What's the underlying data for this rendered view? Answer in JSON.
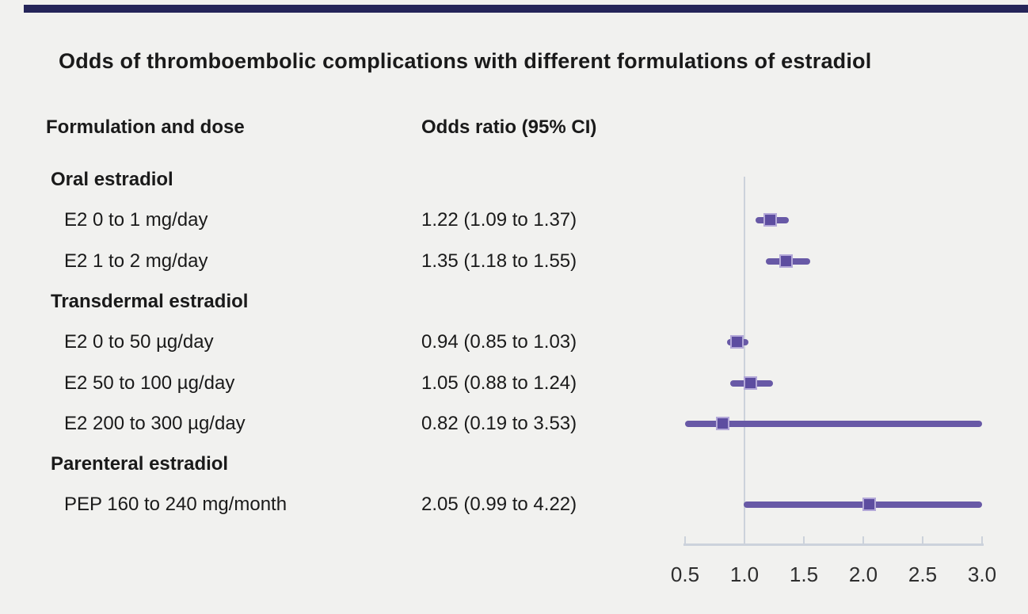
{
  "figure": {
    "title": "Odds of thromboembolic complications with different formulations of estradiol"
  },
  "colors": {
    "background": "#f1f1ef",
    "top_bar": "#252559",
    "text": "#1a1a1a",
    "ci_line_purple": "#6859a6",
    "marker_purple": "#5d4da0",
    "marker_edge": "#b3a8d8",
    "axis_gray_blue": "#ccd2db"
  },
  "chart_data": {
    "type": "forest",
    "title": "Odds of thromboembolic complications with different formulations of estradiol",
    "columns": [
      "Formulation and dose",
      "Odds ratio (95% CI)"
    ],
    "rows": [
      {
        "kind": "group",
        "label": "Oral estradiol"
      },
      {
        "kind": "item",
        "label": "E2 0 to 1 mg/day",
        "or_text": "1.22 (1.09 to 1.37)",
        "or": 1.22,
        "lo": 1.09,
        "hi": 1.37
      },
      {
        "kind": "item",
        "label": "E2 1 to 2 mg/day",
        "or_text": "1.35 (1.18 to 1.55)",
        "or": 1.35,
        "lo": 1.18,
        "hi": 1.55
      },
      {
        "kind": "group",
        "label": "Transdermal estradiol"
      },
      {
        "kind": "item",
        "label": "E2 0 to 50 µg/day",
        "or_text": "0.94 (0.85 to 1.03)",
        "or": 0.94,
        "lo": 0.85,
        "hi": 1.03
      },
      {
        "kind": "item",
        "label": "E2 50 to 100 µg/day",
        "or_text": "1.05 (0.88 to 1.24)",
        "or": 1.05,
        "lo": 0.88,
        "hi": 1.24
      },
      {
        "kind": "item",
        "label": "E2 200 to 300 µg/day",
        "or_text": "0.82 (0.19 to 3.53)",
        "or": 0.82,
        "lo": 0.19,
        "hi": 3.53
      },
      {
        "kind": "group",
        "label": "Parenteral estradiol"
      },
      {
        "kind": "item",
        "label": "PEP 160 to 240 mg/month",
        "or_text": "2.05 (0.99 to 4.22)",
        "or": 2.05,
        "lo": 0.99,
        "hi": 4.22
      }
    ],
    "axis": {
      "min": 0.5,
      "max": 3.0,
      "reference": 1.0,
      "ticks": [
        0.5,
        1.0,
        1.5,
        2.0,
        2.5,
        3.0
      ],
      "tick_labels": [
        "0.5",
        "1.0",
        "1.5",
        "2.0",
        "2.5",
        "3.0"
      ],
      "scale": "linear",
      "grid": false,
      "clip_ci_to_axis": true
    }
  }
}
